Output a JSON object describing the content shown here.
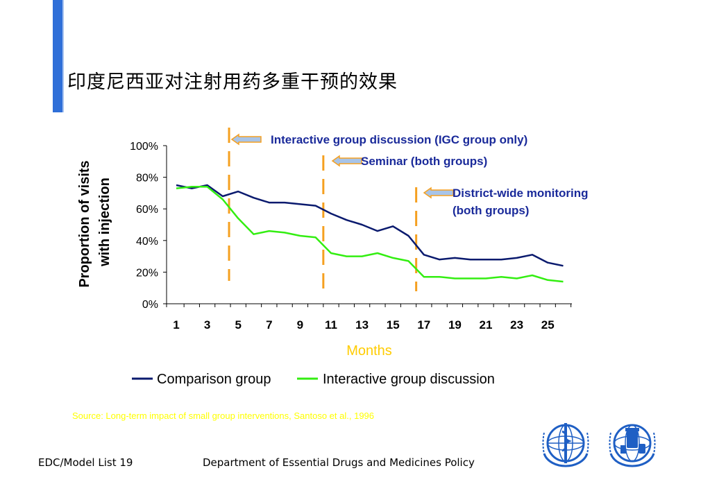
{
  "slide": {
    "title": "印度尼西亚对注射用药多重干预的效果",
    "source": "Source: Long-term impact of small group interventions, Santoso et al., 1996",
    "footer_left": "EDC/Model List 19",
    "footer_center": "Department of Essential Drugs and Medicines Policy"
  },
  "colors": {
    "accent_bar": "#2f6fd8",
    "comparison": "#0a1a6e",
    "interactive": "#33ee11",
    "intervention_line": "#f5a020",
    "annotation_text": "#1a2a9a",
    "xlabel": "#ffcc00",
    "source_text": "#ffff00"
  },
  "chart_data": {
    "type": "line",
    "x": [
      1,
      2,
      3,
      4,
      5,
      6,
      7,
      8,
      9,
      10,
      11,
      12,
      13,
      14,
      15,
      16,
      17,
      18,
      19,
      20,
      21,
      22,
      23,
      24,
      25,
      26
    ],
    "xtick_labels": [
      "1",
      "3",
      "5",
      "7",
      "9",
      "11",
      "13",
      "15",
      "17",
      "19",
      "21",
      "23",
      "25"
    ],
    "ytick_labels": [
      "0%",
      "20%",
      "40%",
      "60%",
      "80%",
      "100%"
    ],
    "ylim": [
      0,
      100
    ],
    "xlabel": "Months",
    "ylabel": "Proportion of visits with injection",
    "series": [
      {
        "name": "Comparison group",
        "color": "#0a1a6e",
        "values": [
          75,
          73,
          75,
          68,
          71,
          67,
          64,
          64,
          63,
          62,
          57,
          53,
          50,
          46,
          49,
          43,
          31,
          28,
          29,
          28,
          28,
          28,
          29,
          31,
          26,
          24
        ]
      },
      {
        "name": "Interactive group discussion",
        "color": "#33ee11",
        "values": [
          73,
          74,
          74,
          66,
          54,
          44,
          46,
          45,
          43,
          42,
          32,
          30,
          30,
          32,
          29,
          27,
          17,
          17,
          16,
          16,
          16,
          17,
          16,
          18,
          15,
          14
        ]
      }
    ],
    "interventions": [
      {
        "x": 4.5,
        "label": "Interactive group discussion (IGC group only)"
      },
      {
        "x": 10.5,
        "label": "Seminar (both groups)"
      },
      {
        "x": 16.5,
        "label": "District-wide monitoring",
        "label2": "(both groups)"
      }
    ],
    "legend_position": "bottom",
    "grid": false
  }
}
